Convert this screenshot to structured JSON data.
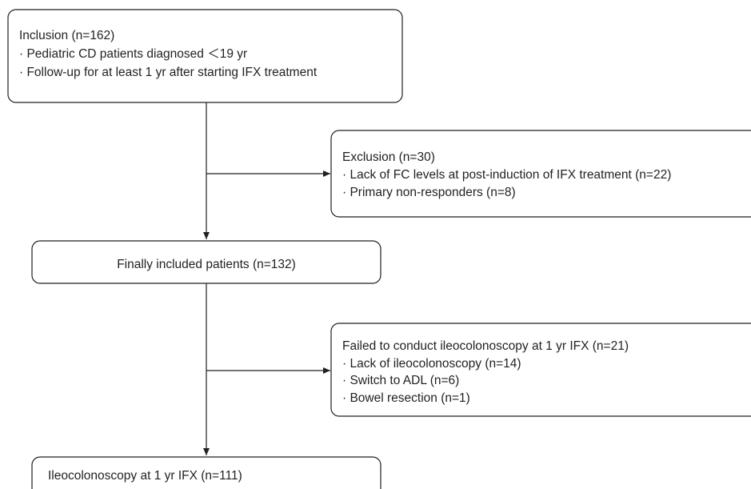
{
  "nodes": [
    {
      "title": "Inclusion (n=162)",
      "items": [
        "· Pediatric CD patients diagnosed ＜19 yr",
        "· Follow-up for at least 1 yr after starting IFX treatment"
      ]
    },
    {
      "title": "Exclusion (n=30)",
      "items": [
        "· Lack of FC levels at post-induction of IFX treatment (n=22)",
        "· Primary non-responders (n=8)"
      ]
    },
    {
      "title": "Finally included patients (n=132)"
    },
    {
      "title": "Failed to conduct ileocolonoscopy at 1 yr IFX (n=21)",
      "items": [
        "· Lack of ileocolonoscopy (n=14)",
        "· Switch to ADL (n=6)",
        "· Bowel resection (n=1)"
      ]
    },
    {
      "title": "Ileocolonoscopy at 1 yr IFX (n=111)"
    }
  ]
}
